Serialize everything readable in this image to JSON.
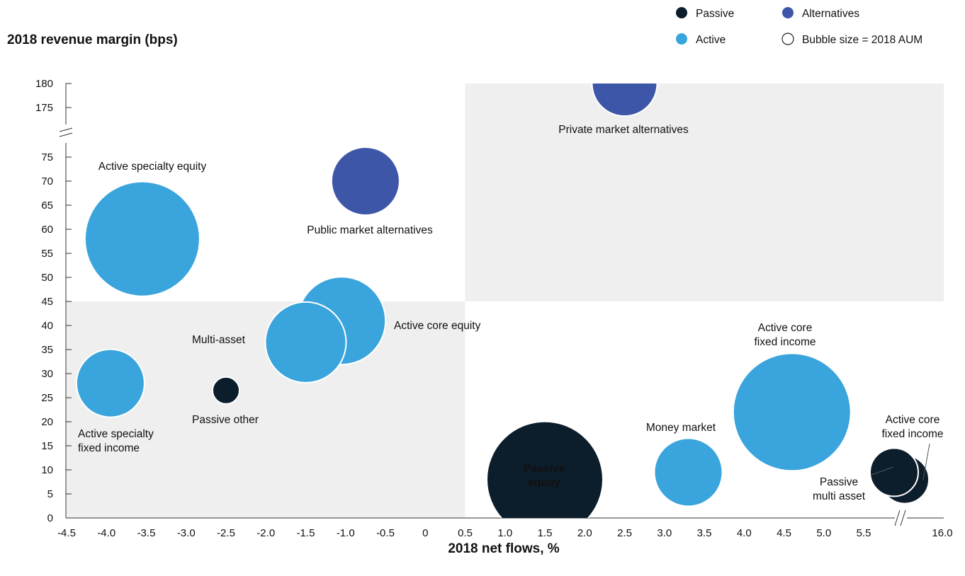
{
  "chart_data": {
    "type": "scatter",
    "variant": "bubble",
    "ylabel": "2018 revenue margin (bps)",
    "xlabel": "2018 net flows, %",
    "x_ticks": [
      "-4.5",
      "-4.0",
      "-3.5",
      "-3.0",
      "-2.5",
      "-2.0",
      "-1.5",
      "-1.0",
      "-0.5",
      "0",
      "0.5",
      "1.0",
      "1.5",
      "2.0",
      "2.5",
      "3.0",
      "3.5",
      "4.0",
      "4.5",
      "5.0",
      "5.5",
      "16.0"
    ],
    "y_ticks": [
      "0",
      "5",
      "10",
      "15",
      "20",
      "25",
      "30",
      "35",
      "40",
      "45",
      "50",
      "55",
      "60",
      "65",
      "70",
      "75",
      "175",
      "180"
    ],
    "xlim": [
      -4.5,
      16.0
    ],
    "ylim": [
      0,
      180
    ],
    "x_axis_break": "between 5.5 and 16.0",
    "y_axis_break": "between 75 and 175",
    "grid": false,
    "shaded_regions": [
      {
        "x": [
          -4.5,
          0.5
        ],
        "y": [
          0,
          45
        ]
      },
      {
        "x": [
          0.5,
          16.0
        ],
        "y": [
          45,
          180
        ]
      }
    ],
    "legend": {
      "position": "top-right",
      "entries": [
        {
          "label": "Passive",
          "color": "#0c1d2b"
        },
        {
          "label": "Alternatives",
          "color": "#3d56a8"
        },
        {
          "label": "Active",
          "color": "#3aa4dc"
        },
        {
          "label": "Bubble size = 2018 AUM",
          "color": "#ffffff",
          "outline": "#222222"
        }
      ]
    },
    "colors": {
      "Passive": "#0c1d2b",
      "Active": "#3aa4dc",
      "Alternatives": "#3d56a8",
      "shade": "#efefef"
    },
    "points": [
      {
        "name": "Private market alternatives",
        "group": "Alternatives",
        "x": 2.5,
        "y": 180
      },
      {
        "name": "Active specialty equity",
        "group": "Active",
        "x": -3.55,
        "y": 58
      },
      {
        "name": "Public market alternatives",
        "group": "Alternatives",
        "x": -0.75,
        "y": 70
      },
      {
        "name": "Active core equity",
        "group": "Active",
        "x": -1.05,
        "y": 41
      },
      {
        "name": "Multi-asset",
        "group": "Active",
        "x": -1.5,
        "y": 36.5
      },
      {
        "name": "Active specialty fixed income",
        "group": "Active",
        "x": -3.95,
        "y": 28
      },
      {
        "name": "Passive other",
        "group": "Passive",
        "x": -2.5,
        "y": 26.5
      },
      {
        "name": "Passive equity",
        "group": "Passive",
        "x": 1.5,
        "y": 8
      },
      {
        "name": "Money market",
        "group": "Active",
        "x": 3.3,
        "y": 9.5
      },
      {
        "name": "Active core fixed income",
        "group": "Active",
        "x": 4.6,
        "y": 22
      },
      {
        "name": "Active core fixed income",
        "group": "Passive",
        "x": 16.0,
        "y": 8
      },
      {
        "name": "Passive multi asset",
        "group": "Passive",
        "x": 15.5,
        "y": 9.5
      }
    ],
    "point_labels": [
      {
        "point": 0,
        "lines": [
          "Private market alternatives"
        ]
      },
      {
        "point": 1,
        "lines": [
          "Active specialty equity"
        ]
      },
      {
        "point": 2,
        "lines": [
          "Public market alternatives"
        ]
      },
      {
        "point": 3,
        "lines": [
          "Active core equity"
        ]
      },
      {
        "point": 4,
        "lines": [
          "Multi-asset"
        ]
      },
      {
        "point": 5,
        "lines": [
          "Active specialty",
          "fixed income"
        ]
      },
      {
        "point": 6,
        "lines": [
          "Passive other"
        ]
      },
      {
        "point": 7,
        "lines": [
          "Passive",
          "equity"
        ]
      },
      {
        "point": 8,
        "lines": [
          "Money market"
        ]
      },
      {
        "point": 9,
        "lines": [
          "Active core",
          "fixed income"
        ]
      },
      {
        "point": 10,
        "lines": [
          "Active core",
          "fixed income"
        ]
      },
      {
        "point": 11,
        "lines": [
          "Passive",
          "multi asset"
        ]
      }
    ]
  }
}
